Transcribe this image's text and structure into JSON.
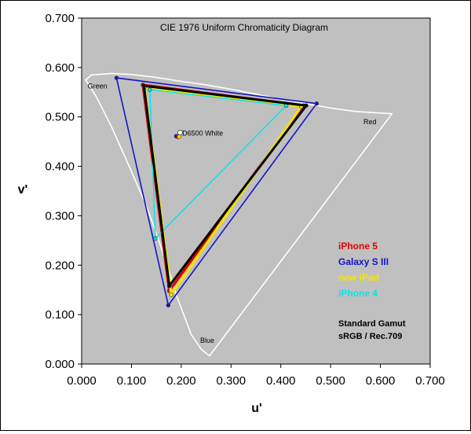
{
  "chart_data": {
    "type": "scatter",
    "title": "CIE 1976 Uniform Chromaticity Diagram",
    "xlabel": "u'",
    "ylabel": "v'",
    "xlim": [
      0.0,
      0.7
    ],
    "ylim": [
      0.0,
      0.7
    ],
    "xticks": [
      "0.000",
      "0.100",
      "0.200",
      "0.300",
      "0.400",
      "0.500",
      "0.600",
      "0.700"
    ],
    "yticks": [
      "0.000",
      "0.100",
      "0.200",
      "0.300",
      "0.400",
      "0.500",
      "0.600",
      "0.700"
    ],
    "grid": false,
    "plot_background": "#c0c0c0",
    "locus_labels": [
      {
        "text": "Green",
        "u": 0.012,
        "v": 0.558
      },
      {
        "text": "Red",
        "u": 0.566,
        "v": 0.485
      },
      {
        "text": "Blue",
        "u": 0.238,
        "v": 0.043
      },
      {
        "text": "D6500 White",
        "u": 0.202,
        "v": 0.462
      }
    ],
    "spectral_locus": [
      [
        0.2568,
        0.0165
      ],
      [
        0.24,
        0.03
      ],
      [
        0.22,
        0.06
      ],
      [
        0.205,
        0.1
      ],
      [
        0.19,
        0.14
      ],
      [
        0.175,
        0.19
      ],
      [
        0.155,
        0.25
      ],
      [
        0.13,
        0.32
      ],
      [
        0.1,
        0.39
      ],
      [
        0.06,
        0.48
      ],
      [
        0.03,
        0.54
      ],
      [
        0.008,
        0.575
      ],
      [
        0.02,
        0.585
      ],
      [
        0.06,
        0.588
      ],
      [
        0.1,
        0.586
      ],
      [
        0.15,
        0.58
      ],
      [
        0.2,
        0.572
      ],
      [
        0.25,
        0.565
      ],
      [
        0.3,
        0.556
      ],
      [
        0.35,
        0.546
      ],
      [
        0.4,
        0.536
      ],
      [
        0.45,
        0.527
      ],
      [
        0.5,
        0.518
      ],
      [
        0.55,
        0.511
      ],
      [
        0.6233,
        0.5064
      ],
      [
        0.2568,
        0.0165
      ]
    ],
    "white_point": {
      "name": "D6500 White",
      "u": 0.1978,
      "v": 0.4683
    },
    "white_measured": [
      {
        "name": "Galaxy S III",
        "u": 0.19,
        "v": 0.461,
        "color": "#1414c8"
      },
      {
        "name": "iPhone 5",
        "u": 0.193,
        "v": 0.46,
        "color": "#e00000"
      },
      {
        "name": "new iPad",
        "u": 0.196,
        "v": 0.46,
        "color": "#e8d800"
      }
    ],
    "series": [
      {
        "name": "Galaxy S III",
        "color": "#1414c8",
        "width": 1.6,
        "points": [
          [
            0.472,
            0.527
          ],
          [
            0.07,
            0.579
          ],
          [
            0.174,
            0.119
          ]
        ]
      },
      {
        "name": "iPhone 5",
        "color": "#e00000",
        "width": 3.2,
        "points": [
          [
            0.446,
            0.523
          ],
          [
            0.123,
            0.565
          ],
          [
            0.176,
            0.148
          ]
        ]
      },
      {
        "name": "new iPad",
        "color": "#f2e600",
        "width": 3.2,
        "points": [
          [
            0.441,
            0.521
          ],
          [
            0.126,
            0.56
          ],
          [
            0.18,
            0.14
          ]
        ]
      },
      {
        "name": "iPhone 4",
        "color": "#00e6e6",
        "width": 1.4,
        "points": [
          [
            0.411,
            0.523
          ],
          [
            0.137,
            0.555
          ],
          [
            0.148,
            0.254
          ]
        ]
      },
      {
        "name": "Standard Gamut",
        "color": "#000000",
        "width": 3.0,
        "legend": false,
        "points": [
          [
            0.451,
            0.523
          ],
          [
            0.125,
            0.563
          ],
          [
            0.176,
            0.158
          ]
        ]
      }
    ],
    "legend": {
      "placement": "right-center",
      "entries": [
        {
          "text": "iPhone 5",
          "color": "#e00000"
        },
        {
          "text": "Galaxy S III",
          "color": "#1414c8"
        },
        {
          "text": "new iPad",
          "color": "#f2e600"
        },
        {
          "text": "iPhone 4",
          "color": "#00e6e6"
        }
      ],
      "note_line1": "Standard Gamut",
      "note_line2": "sRGB / Rec.709",
      "note_color": "#000000"
    }
  }
}
